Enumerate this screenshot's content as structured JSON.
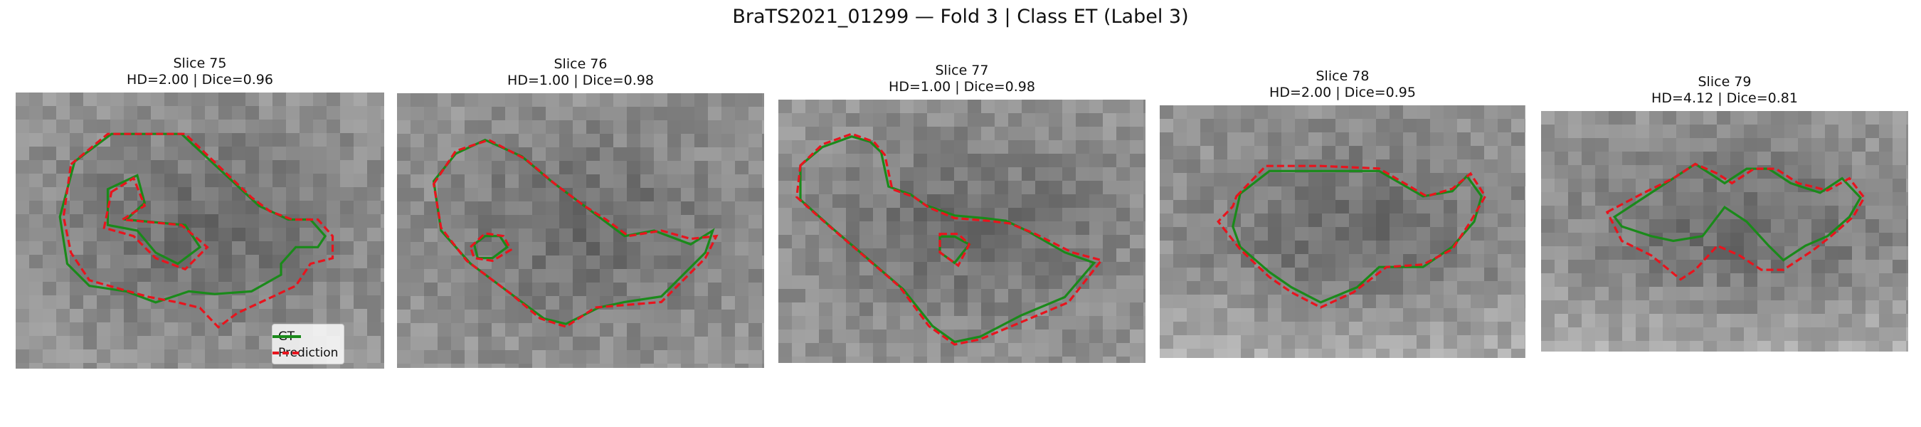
{
  "figure": {
    "title": "BraTS2021_01299 — Fold 3 | Class ET (Label 3)"
  },
  "panels": [
    {
      "title": "Slice 75",
      "metrics": "HD=2.00 | Dice=0.96"
    },
    {
      "title": "Slice 76",
      "metrics": "HD=1.00 | Dice=0.98"
    },
    {
      "title": "Slice 77",
      "metrics": "HD=1.00 | Dice=0.98"
    },
    {
      "title": "Slice 78",
      "metrics": "HD=2.00 | Dice=0.95"
    },
    {
      "title": "Slice 79",
      "metrics": "HD=4.12 | Dice=0.81"
    }
  ],
  "legend": {
    "gt_label": "GT",
    "prediction_label": "Prediction"
  },
  "colors": {
    "gt": "#1a8a1a",
    "prediction": "#e8141d"
  }
}
